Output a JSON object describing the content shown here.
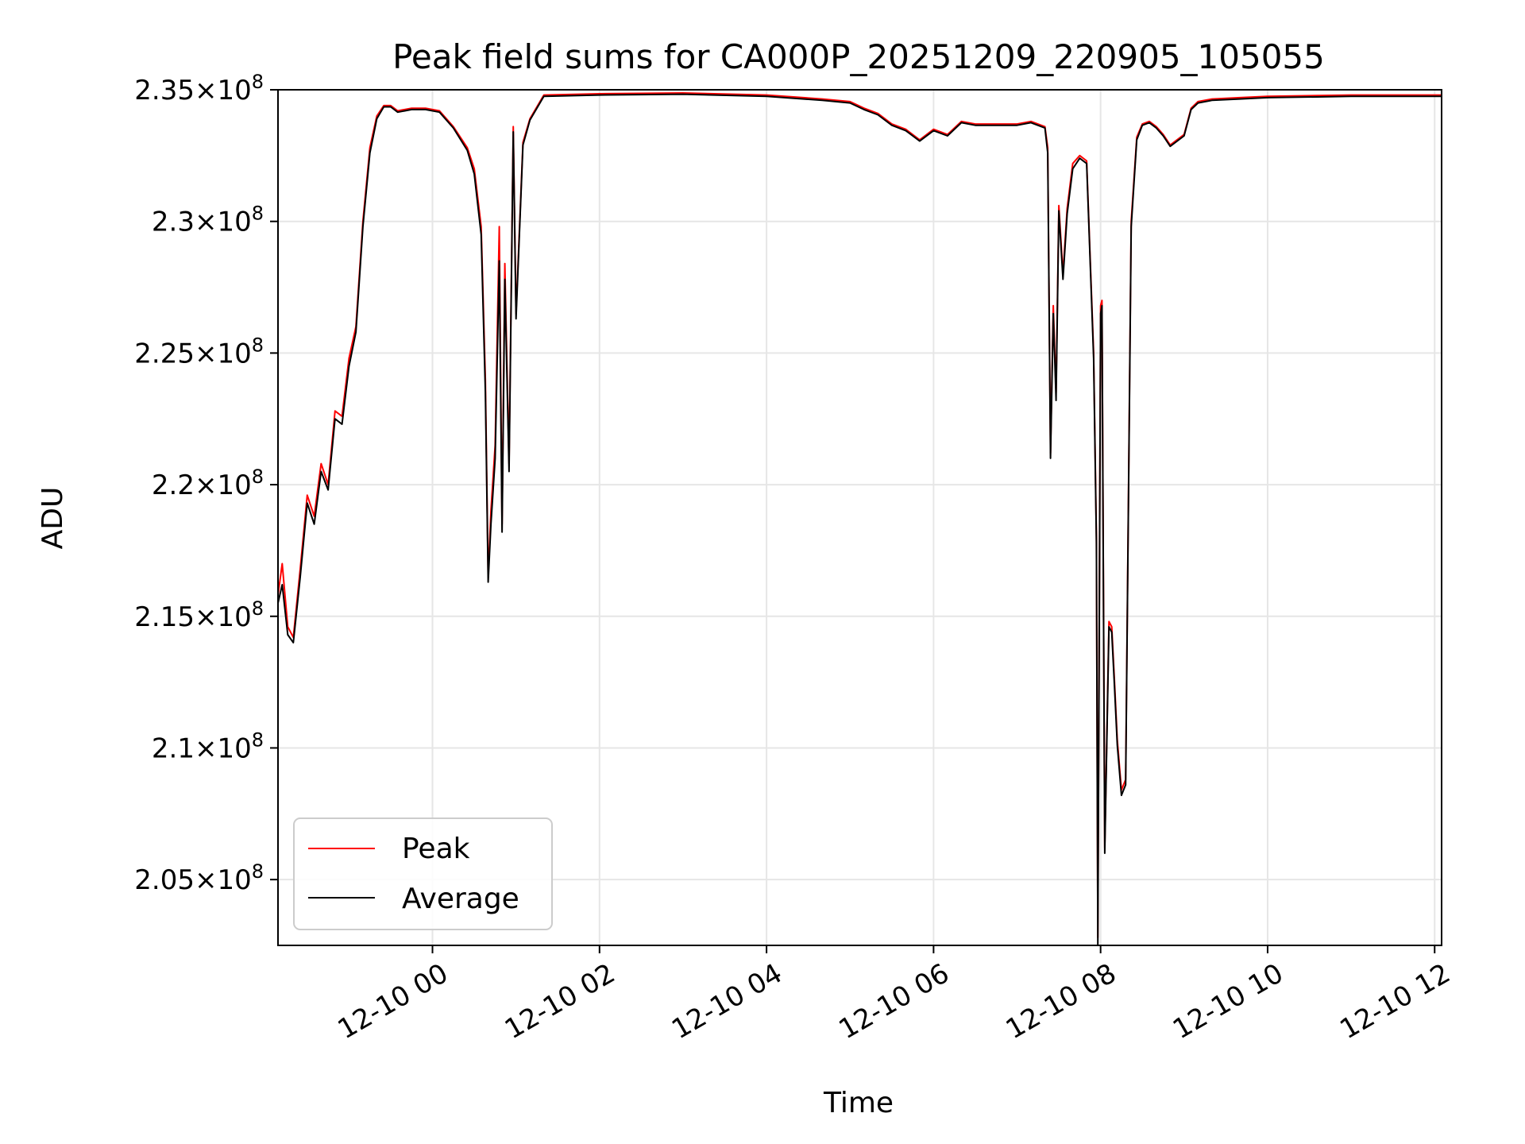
{
  "chart_data": {
    "type": "line",
    "title": "Peak field sums for CA000P_20251209_220905_105055",
    "xlabel": "Time",
    "ylabel": "ADU",
    "y_tick_mantissas": [
      "2.05",
      "2.1",
      "2.15",
      "2.2",
      "2.25",
      "2.3",
      "2.35"
    ],
    "y_tick_base": "10",
    "y_tick_exponent": "8",
    "yticks": [
      205000000,
      210000000,
      215000000,
      220000000,
      225000000,
      230000000,
      235000000
    ],
    "ylim": [
      202500000,
      235000000
    ],
    "xlim": [
      "2025-12-09 22:09",
      "2025-12-10 12:05"
    ],
    "x_tick_labels": [
      "12-10 00",
      "12-10 02",
      "12-10 04",
      "12-10 06",
      "12-10 08",
      "12-10 10",
      "12-10 12"
    ],
    "x_tick_values": [
      "2025-12-10 00:00",
      "2025-12-10 02:00",
      "2025-12-10 04:00",
      "2025-12-10 06:00",
      "2025-12-10 08:00",
      "2025-12-10 10:00",
      "2025-12-10 12:00"
    ],
    "grid": true,
    "legend_position": "lower-left",
    "series": [
      {
        "name": "Peak",
        "color": "#ff0000",
        "x": [
          "2025-12-09 22:09",
          "2025-12-09 22:12",
          "2025-12-09 22:16",
          "2025-12-09 22:20",
          "2025-12-09 22:25",
          "2025-12-09 22:30",
          "2025-12-09 22:35",
          "2025-12-09 22:40",
          "2025-12-09 22:45",
          "2025-12-09 22:50",
          "2025-12-09 22:55",
          "2025-12-09 23:00",
          "2025-12-09 23:05",
          "2025-12-09 23:10",
          "2025-12-09 23:15",
          "2025-12-09 23:20",
          "2025-12-09 23:25",
          "2025-12-09 23:30",
          "2025-12-09 23:35",
          "2025-12-09 23:45",
          "2025-12-09 23:55",
          "2025-12-10 00:05",
          "2025-12-10 00:15",
          "2025-12-10 00:25",
          "2025-12-10 00:30",
          "2025-12-10 00:35",
          "2025-12-10 00:38",
          "2025-12-10 00:40",
          "2025-12-10 00:42",
          "2025-12-10 00:45",
          "2025-12-10 00:48",
          "2025-12-10 00:50",
          "2025-12-10 00:52",
          "2025-12-10 00:55",
          "2025-12-10 00:58",
          "2025-12-10 01:00",
          "2025-12-10 01:05",
          "2025-12-10 01:10",
          "2025-12-10 01:20",
          "2025-12-10 02:00",
          "2025-12-10 03:00",
          "2025-12-10 04:00",
          "2025-12-10 04:40",
          "2025-12-10 05:00",
          "2025-12-10 05:10",
          "2025-12-10 05:20",
          "2025-12-10 05:30",
          "2025-12-10 05:40",
          "2025-12-10 05:50",
          "2025-12-10 06:00",
          "2025-12-10 06:10",
          "2025-12-10 06:20",
          "2025-12-10 06:30",
          "2025-12-10 06:40",
          "2025-12-10 06:50",
          "2025-12-10 07:00",
          "2025-12-10 07:10",
          "2025-12-10 07:20",
          "2025-12-10 07:22",
          "2025-12-10 07:24",
          "2025-12-10 07:26",
          "2025-12-10 07:28",
          "2025-12-10 07:30",
          "2025-12-10 07:33",
          "2025-12-10 07:36",
          "2025-12-10 07:40",
          "2025-12-10 07:45",
          "2025-12-10 07:50",
          "2025-12-10 07:55",
          "2025-12-10 07:57",
          "2025-12-10 07:58",
          "2025-12-10 08:00",
          "2025-12-10 08:01",
          "2025-12-10 08:03",
          "2025-12-10 08:06",
          "2025-12-10 08:08",
          "2025-12-10 08:10",
          "2025-12-10 08:12",
          "2025-12-10 08:15",
          "2025-12-10 08:18",
          "2025-12-10 08:22",
          "2025-12-10 08:26",
          "2025-12-10 08:30",
          "2025-12-10 08:35",
          "2025-12-10 08:40",
          "2025-12-10 08:45",
          "2025-12-10 08:50",
          "2025-12-10 09:00",
          "2025-12-10 09:05",
          "2025-12-10 09:10",
          "2025-12-10 09:20",
          "2025-12-10 09:40",
          "2025-12-10 10:00",
          "2025-12-10 11:00",
          "2025-12-10 12:05"
        ],
        "values": [
          215800000,
          217000000,
          214600000,
          214200000,
          216800000,
          219600000,
          218800000,
          220800000,
          220000000,
          222800000,
          222600000,
          224800000,
          226000000,
          230000000,
          232800000,
          234000000,
          234400000,
          234400000,
          234200000,
          234300000,
          234300000,
          234200000,
          233600000,
          232800000,
          232000000,
          229800000,
          224000000,
          216500000,
          219000000,
          221500000,
          229800000,
          218500000,
          228400000,
          220800000,
          233600000,
          226500000,
          233000000,
          233900000,
          234800000,
          234850000,
          234880000,
          234800000,
          234650000,
          234550000,
          234300000,
          234100000,
          233700000,
          233500000,
          233100000,
          233500000,
          233300000,
          233800000,
          233700000,
          233700000,
          233700000,
          233700000,
          233800000,
          233600000,
          232800000,
          221200000,
          226800000,
          223500000,
          230600000,
          228000000,
          230500000,
          232200000,
          232500000,
          232300000,
          225000000,
          218000000,
          202800000,
          226800000,
          227000000,
          206200000,
          214800000,
          214600000,
          212500000,
          210300000,
          208400000,
          208800000,
          230000000,
          233200000,
          233700000,
          233800000,
          233600000,
          233300000,
          232900000,
          233300000,
          234300000,
          234550000,
          234650000,
          234700000,
          234750000,
          234800000,
          234800000
        ]
      },
      {
        "name": "Average",
        "color": "#000000",
        "x": [
          "2025-12-09 22:09",
          "2025-12-09 22:12",
          "2025-12-09 22:16",
          "2025-12-09 22:20",
          "2025-12-09 22:25",
          "2025-12-09 22:30",
          "2025-12-09 22:35",
          "2025-12-09 22:40",
          "2025-12-09 22:45",
          "2025-12-09 22:50",
          "2025-12-09 22:55",
          "2025-12-09 23:00",
          "2025-12-09 23:05",
          "2025-12-09 23:10",
          "2025-12-09 23:15",
          "2025-12-09 23:20",
          "2025-12-09 23:25",
          "2025-12-09 23:30",
          "2025-12-09 23:35",
          "2025-12-09 23:45",
          "2025-12-09 23:55",
          "2025-12-10 00:05",
          "2025-12-10 00:15",
          "2025-12-10 00:25",
          "2025-12-10 00:30",
          "2025-12-10 00:35",
          "2025-12-10 00:38",
          "2025-12-10 00:40",
          "2025-12-10 00:42",
          "2025-12-10 00:45",
          "2025-12-10 00:48",
          "2025-12-10 00:50",
          "2025-12-10 00:52",
          "2025-12-10 00:55",
          "2025-12-10 00:58",
          "2025-12-10 01:00",
          "2025-12-10 01:05",
          "2025-12-10 01:10",
          "2025-12-10 01:20",
          "2025-12-10 02:00",
          "2025-12-10 03:00",
          "2025-12-10 04:00",
          "2025-12-10 04:40",
          "2025-12-10 05:00",
          "2025-12-10 05:10",
          "2025-12-10 05:20",
          "2025-12-10 05:30",
          "2025-12-10 05:40",
          "2025-12-10 05:50",
          "2025-12-10 06:00",
          "2025-12-10 06:10",
          "2025-12-10 06:20",
          "2025-12-10 06:30",
          "2025-12-10 06:40",
          "2025-12-10 06:50",
          "2025-12-10 07:00",
          "2025-12-10 07:10",
          "2025-12-10 07:20",
          "2025-12-10 07:22",
          "2025-12-10 07:24",
          "2025-12-10 07:26",
          "2025-12-10 07:28",
          "2025-12-10 07:30",
          "2025-12-10 07:33",
          "2025-12-10 07:36",
          "2025-12-10 07:40",
          "2025-12-10 07:45",
          "2025-12-10 07:50",
          "2025-12-10 07:55",
          "2025-12-10 07:57",
          "2025-12-10 07:58",
          "2025-12-10 08:00",
          "2025-12-10 08:01",
          "2025-12-10 08:03",
          "2025-12-10 08:06",
          "2025-12-10 08:08",
          "2025-12-10 08:10",
          "2025-12-10 08:12",
          "2025-12-10 08:15",
          "2025-12-10 08:18",
          "2025-12-10 08:22",
          "2025-12-10 08:26",
          "2025-12-10 08:30",
          "2025-12-10 08:35",
          "2025-12-10 08:40",
          "2025-12-10 08:45",
          "2025-12-10 08:50",
          "2025-12-10 09:00",
          "2025-12-10 09:05",
          "2025-12-10 09:10",
          "2025-12-10 09:20",
          "2025-12-10 09:40",
          "2025-12-10 10:00",
          "2025-12-10 11:00",
          "2025-12-10 12:05"
        ],
        "values": [
          215500000,
          216200000,
          214300000,
          214000000,
          216500000,
          219300000,
          218500000,
          220500000,
          219800000,
          222500000,
          222300000,
          224500000,
          225800000,
          229800000,
          232600000,
          233900000,
          234350000,
          234350000,
          234150000,
          234250000,
          234250000,
          234150000,
          233550000,
          232700000,
          231800000,
          229500000,
          223500000,
          216300000,
          218500000,
          221000000,
          228500000,
          218200000,
          227800000,
          220500000,
          233400000,
          226300000,
          232900000,
          233850000,
          234750000,
          234800000,
          234830000,
          234750000,
          234600000,
          234500000,
          234250000,
          234050000,
          233650000,
          233450000,
          233050000,
          233450000,
          233250000,
          233750000,
          233650000,
          233650000,
          233650000,
          233650000,
          233750000,
          233550000,
          232600000,
          221000000,
          226500000,
          223200000,
          230400000,
          227800000,
          230300000,
          232000000,
          232400000,
          232200000,
          224800000,
          217800000,
          202500000,
          226500000,
          226800000,
          206000000,
          214600000,
          214400000,
          212300000,
          210100000,
          208200000,
          208600000,
          229800000,
          233100000,
          233650000,
          233750000,
          233550000,
          233250000,
          232850000,
          233250000,
          234250000,
          234500000,
          234600000,
          234650000,
          234700000,
          234750000,
          234750000
        ]
      }
    ]
  }
}
